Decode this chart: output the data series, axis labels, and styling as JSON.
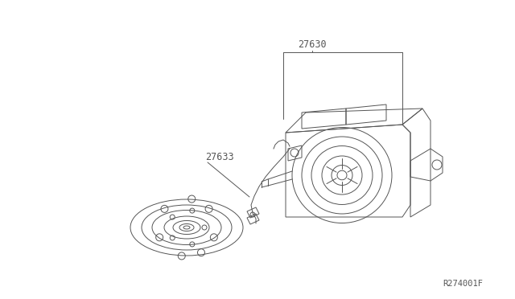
{
  "bg_color": "#ffffff",
  "line_color": "#555555",
  "label_27630": "27630",
  "label_27633": "27633",
  "ref_code": "R274001F",
  "font_size_labels": 8.5,
  "font_size_ref": 7.5
}
